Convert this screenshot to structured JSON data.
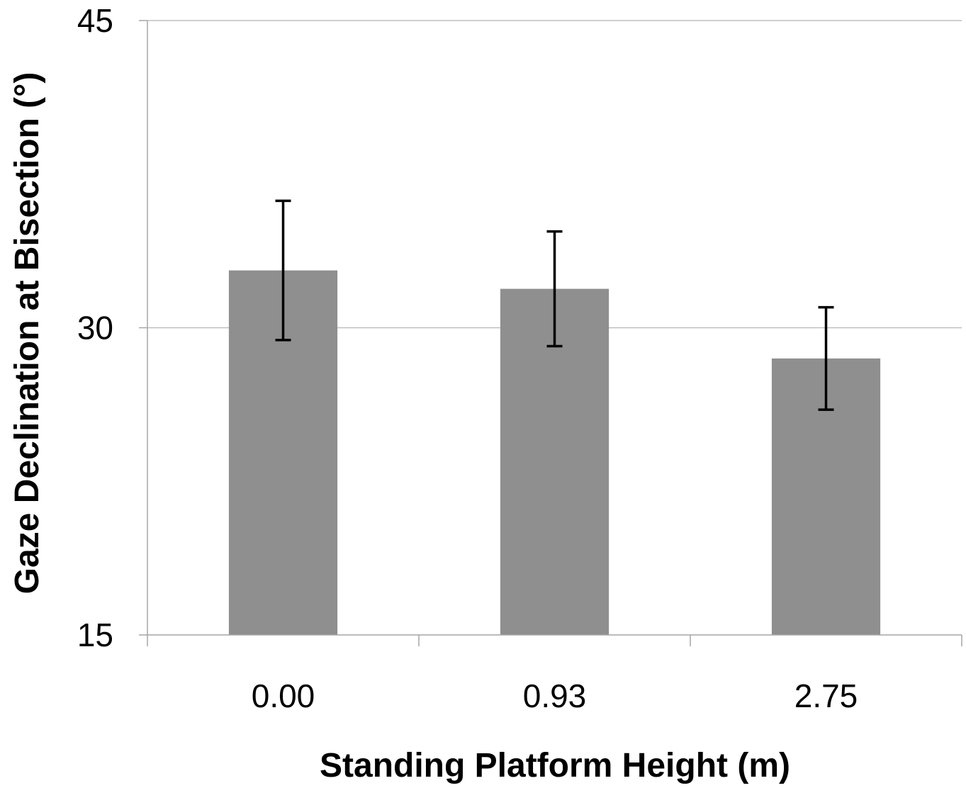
{
  "chart_data": {
    "type": "bar",
    "title": "",
    "xlabel": "Standing Platform Height (m)",
    "ylabel": "Gaze Declination at Bisection (°)",
    "categories": [
      "0.00",
      "0.93",
      "2.75"
    ],
    "series": [
      {
        "values": [
          32.8,
          31.9,
          28.5
        ],
        "error": [
          3.4,
          2.8,
          2.5
        ]
      }
    ],
    "ylim": [
      15,
      45
    ],
    "yticks": [
      15,
      30,
      45
    ],
    "grid": true,
    "legend": "none",
    "colors": {
      "bar": "#8f8f8f",
      "error_bar": "#000000",
      "grid": "#bfbfbf",
      "axis": "#a6a6a6"
    }
  }
}
